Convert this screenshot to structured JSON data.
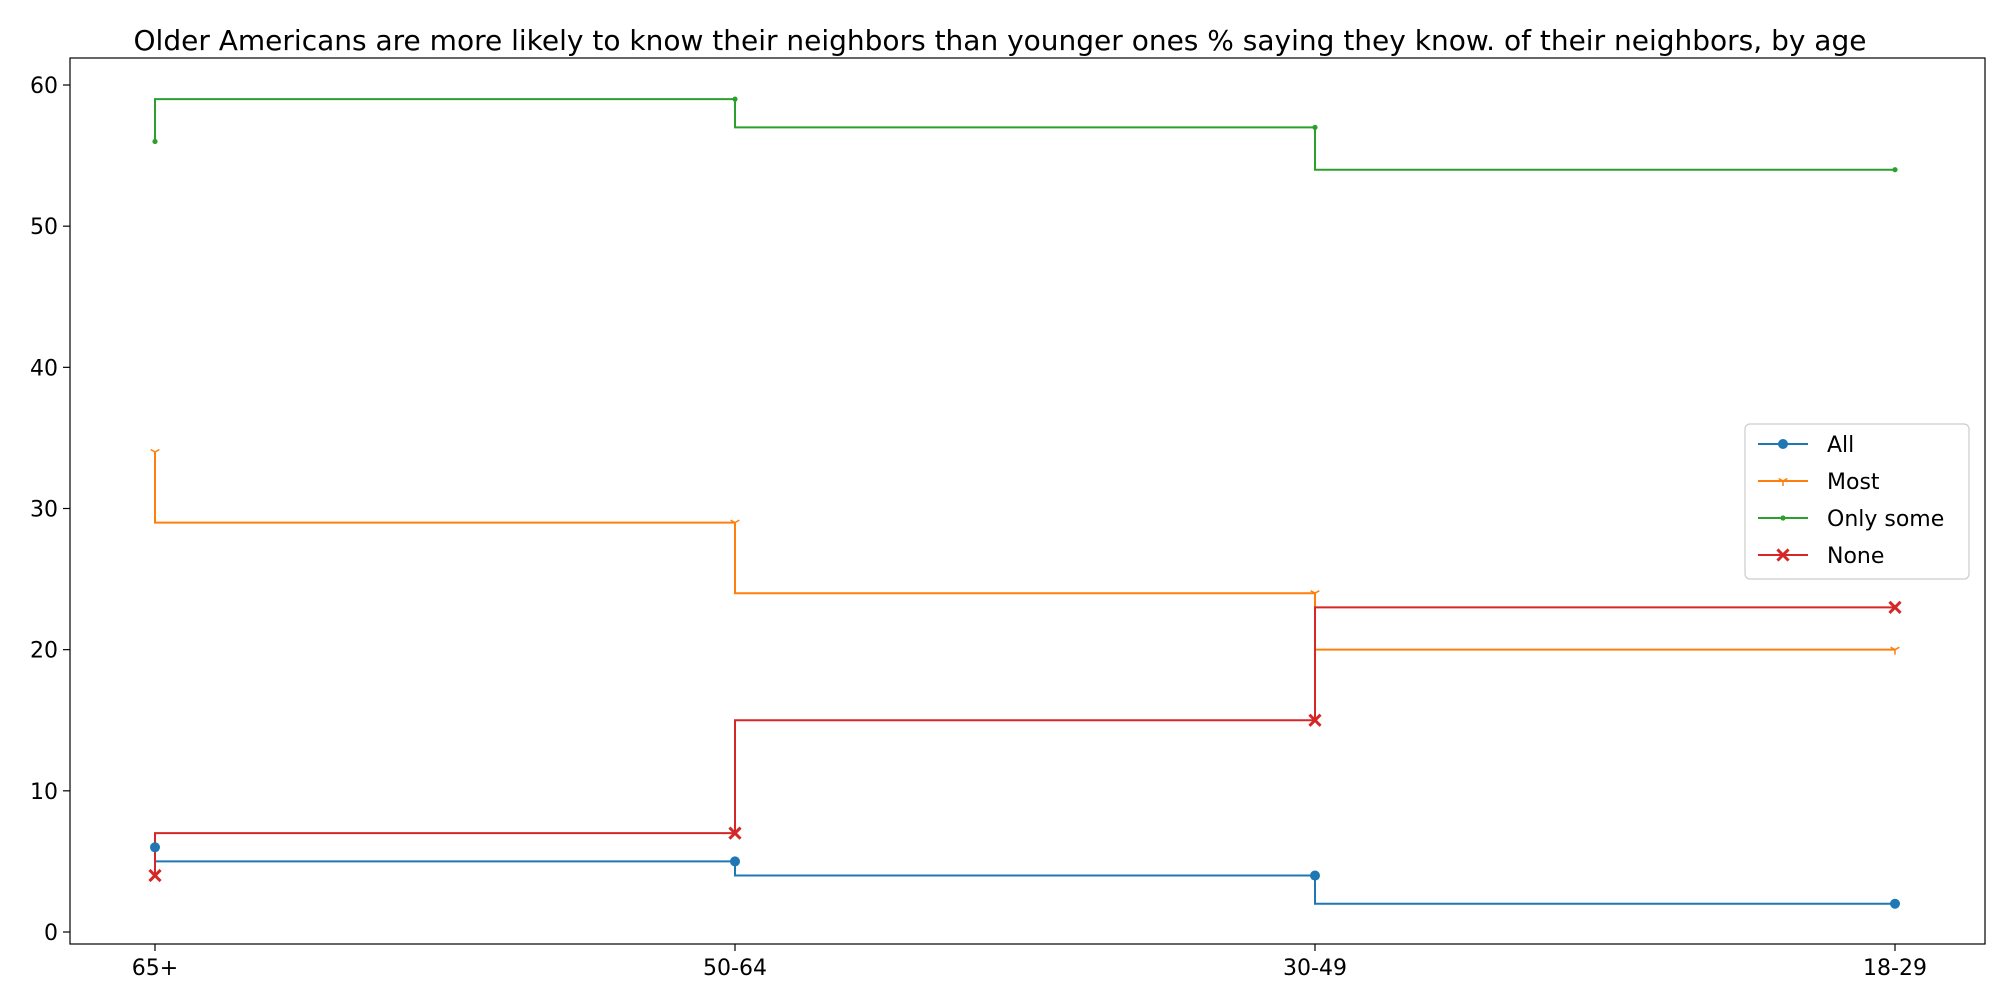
{
  "chart_data": {
    "type": "line",
    "step": "pre",
    "title": "Older Americans are more likely to know their neighbors than younger ones % saying they know. of their neighbors, by age",
    "xlabel": "",
    "ylabel": "",
    "categories": [
      "65+",
      "50-64",
      "30-49",
      "18-29"
    ],
    "ylim": [
      -1,
      62
    ],
    "yticks": [
      0,
      10,
      20,
      30,
      40,
      50,
      60
    ],
    "grid": false,
    "legend_position": "center-right",
    "series": [
      {
        "name": "All",
        "values": [
          6,
          5,
          4,
          2
        ],
        "color": "#1f77b4",
        "marker": "circle"
      },
      {
        "name": "Most",
        "values": [
          34,
          29,
          24,
          20
        ],
        "color": "#ff7f0e",
        "marker": "tri-down"
      },
      {
        "name": "Only some",
        "values": [
          56,
          59,
          57,
          54
        ],
        "color": "#2ca02c",
        "marker": "point"
      },
      {
        "name": "None",
        "values": [
          4,
          7,
          15,
          23
        ],
        "color": "#d62728",
        "marker": "x-filled"
      }
    ]
  }
}
